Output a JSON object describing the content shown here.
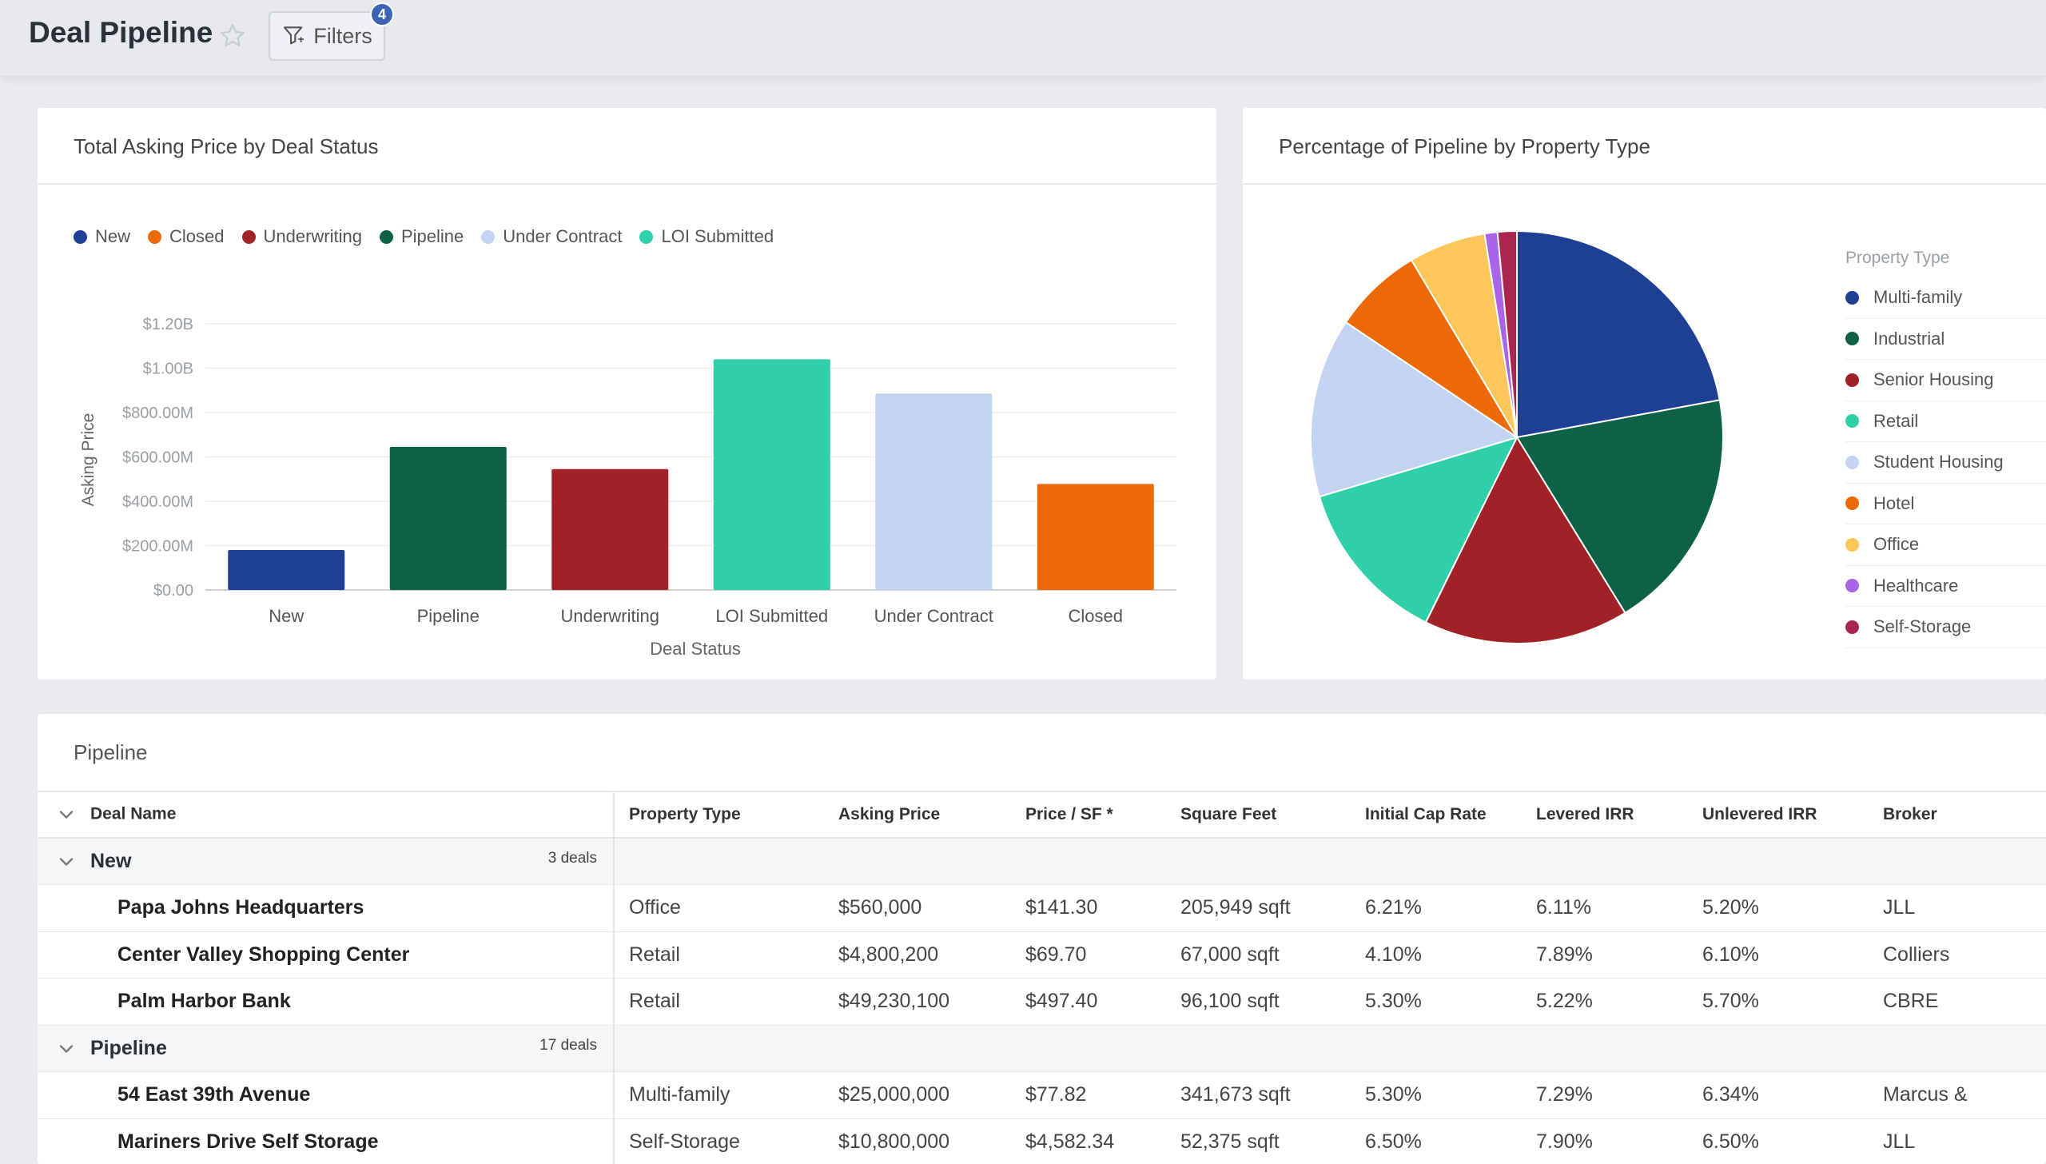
{
  "header": {
    "title": "Deal Pipeline",
    "filters_label": "Filters",
    "filters_count": "4"
  },
  "bar_card": {
    "title": "Total Asking Price by Deal Status"
  },
  "pie_card": {
    "title": "Percentage of Pipeline by Property Type",
    "legend_title": "Property Type"
  },
  "chart_data": [
    {
      "type": "bar",
      "title": "Total Asking Price by Deal Status",
      "legend": [
        {
          "name": "New",
          "color": "#1f3f95"
        },
        {
          "name": "Closed",
          "color": "#ec6a05"
        },
        {
          "name": "Underwriting",
          "color": "#a02226"
        },
        {
          "name": "Pipeline",
          "color": "#0d6146"
        },
        {
          "name": "Under Contract",
          "color": "#c3d3f2"
        },
        {
          "name": "LOI Submitted",
          "color": "#2ecfa9"
        }
      ],
      "categories": [
        "New",
        "Pipeline",
        "Underwriting",
        "LOI Submitted",
        "Under Contract",
        "Closed"
      ],
      "values": [
        180000000,
        645000000,
        545000000,
        1040000000,
        885000000,
        478000000
      ],
      "colors": [
        "#1f3f95",
        "#0d6146",
        "#a02226",
        "#2ecfa9",
        "#c3d3f2",
        "#ec6a05"
      ],
      "xlabel": "Deal Status",
      "ylabel": "Asking Price",
      "ylim": [
        0,
        1200000000
      ],
      "yticks": [
        0,
        200000000,
        400000000,
        600000000,
        800000000,
        1000000000,
        1200000000
      ],
      "ytick_labels": [
        "$0.00",
        "$200.00M",
        "$400.00M",
        "$600.00M",
        "$800.00M",
        "$1.00B",
        "$1.20B"
      ],
      "grid": true,
      "legend_position": "top-left"
    },
    {
      "type": "pie",
      "title": "Percentage of Pipeline by Property Type",
      "legend_title": "Property Type",
      "legend_position": "right",
      "labels": [
        "Multi-family",
        "Industrial",
        "Senior Housing",
        "Retail",
        "Student Housing",
        "Hotel",
        "Office",
        "Healthcare",
        "Self-Storage"
      ],
      "values": [
        22,
        19,
        16,
        13,
        14,
        7,
        6,
        1,
        1.5
      ],
      "colors": [
        "#1f3f95",
        "#0d6146",
        "#a02226",
        "#2ecfa9",
        "#c3d3f2",
        "#ec6a05",
        "#ffc75a",
        "#a964e8",
        "#a8264f"
      ]
    }
  ],
  "table": {
    "section_title": "Pipeline",
    "columns": [
      "Deal Name",
      "Property Type",
      "Asking Price",
      "Price / SF *",
      "Square Feet",
      "Initial Cap Rate",
      "Levered IRR",
      "Unlevered IRR",
      "Broker"
    ],
    "groups": [
      {
        "name": "New",
        "count": "3 deals",
        "rows": [
          [
            "Papa Johns Headquarters",
            "Office",
            "$560,000",
            "$141.30",
            "205,949 sqft",
            "6.21%",
            "6.11%",
            "5.20%",
            "JLL"
          ],
          [
            "Center Valley Shopping Center",
            "Retail",
            "$4,800,200",
            "$69.70",
            "67,000 sqft",
            "4.10%",
            "7.89%",
            "6.10%",
            "Colliers"
          ],
          [
            "Palm Harbor Bank",
            "Retail",
            "$49,230,100",
            "$497.40",
            "96,100 sqft",
            "5.30%",
            "5.22%",
            "5.70%",
            "CBRE"
          ]
        ]
      },
      {
        "name": "Pipeline",
        "count": "17 deals",
        "rows": [
          [
            "54 East 39th Avenue",
            "Multi-family",
            "$25,000,000",
            "$77.82",
            "341,673 sqft",
            "5.30%",
            "7.29%",
            "6.34%",
            "Marcus &"
          ],
          [
            "Mariners Drive Self Storage",
            "Self-Storage",
            "$10,800,000",
            "$4,582.34",
            "52,375 sqft",
            "6.50%",
            "7.90%",
            "6.50%",
            "JLL"
          ]
        ]
      }
    ]
  }
}
